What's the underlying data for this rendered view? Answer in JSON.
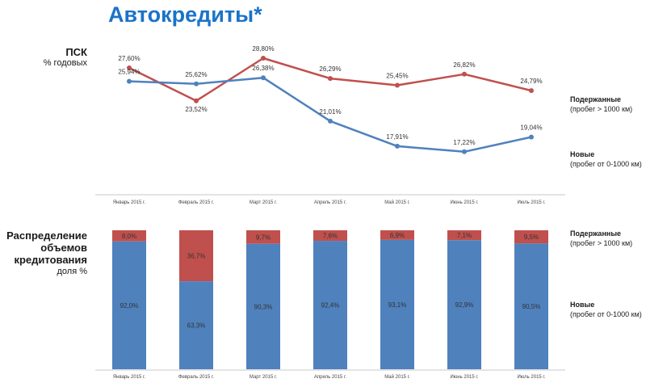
{
  "title": "Автокредиты*",
  "line_section": {
    "label_main": "ПСК",
    "label_sub": "% годовых",
    "legend": {
      "used_title": "Подержанные",
      "used_sub": "(пробег > 1000 км)",
      "new_title": "Новые",
      "new_sub": "(пробег от 0-1000 км)"
    }
  },
  "bar_section": {
    "label_main": "Распределение объемов кредитования",
    "label_sub": "доля %",
    "legend": {
      "used_title": "Подержанные",
      "used_sub": "(пробег > 1000 км)",
      "new_title": "Новые",
      "new_sub": "(пробег от 0-1000 км)"
    }
  },
  "colors": {
    "title": "#1a73c9",
    "used_line": "#c0504d",
    "new_line": "#4f81bd",
    "used_bar": "#c0504d",
    "new_bar": "#4f81bd"
  },
  "chart_data": [
    {
      "type": "line",
      "categories": [
        "Январь 2015 г.",
        "Февраль 2015 г.",
        "Март 2015 г.",
        "Апрель 2015 г.",
        "Май 2015 г.",
        "Июнь 2015 г.",
        "Июль 2015 г."
      ],
      "series": [
        {
          "name": "Подержанные",
          "values": [
            27.6,
            23.52,
            28.8,
            26.29,
            25.45,
            26.82,
            24.79
          ],
          "labels": [
            "27,60%",
            "23,52%",
            "28,80%",
            "26,29%",
            "25,45%",
            "26,82%",
            "24,79%"
          ]
        },
        {
          "name": "Новые",
          "values": [
            25.94,
            25.62,
            26.38,
            21.01,
            17.91,
            17.22,
            19.04
          ],
          "labels": [
            "25,94%",
            "25,62%",
            "26,38%",
            "21,01%",
            "17,91%",
            "17,22%",
            "19,04%"
          ]
        }
      ],
      "ylim": [
        12,
        32
      ],
      "grid": false
    },
    {
      "type": "bar",
      "stacked": true,
      "categories": [
        "Январь 2015 г.",
        "Февраль 2015 г.",
        "Март 2015 г.",
        "Апрель 2015 г.",
        "Май 2015 г.",
        "Июнь 2015 г.",
        "Июль 2015 г."
      ],
      "series": [
        {
          "name": "Новые",
          "values": [
            92.0,
            63.3,
            90.3,
            92.4,
            93.1,
            92.9,
            90.5
          ],
          "labels": [
            "92,0%",
            "63,3%",
            "90,3%",
            "92,4%",
            "93,1%",
            "92,9%",
            "90,5%"
          ]
        },
        {
          "name": "Подержанные",
          "values": [
            8.0,
            36.7,
            9.7,
            7.6,
            6.9,
            7.1,
            9.5
          ],
          "labels": [
            "8,0%",
            "36,7%",
            "9,7%",
            "7,6%",
            "6,9%",
            "7,1%",
            "9,5%"
          ]
        }
      ],
      "ylim": [
        0,
        100
      ]
    }
  ]
}
